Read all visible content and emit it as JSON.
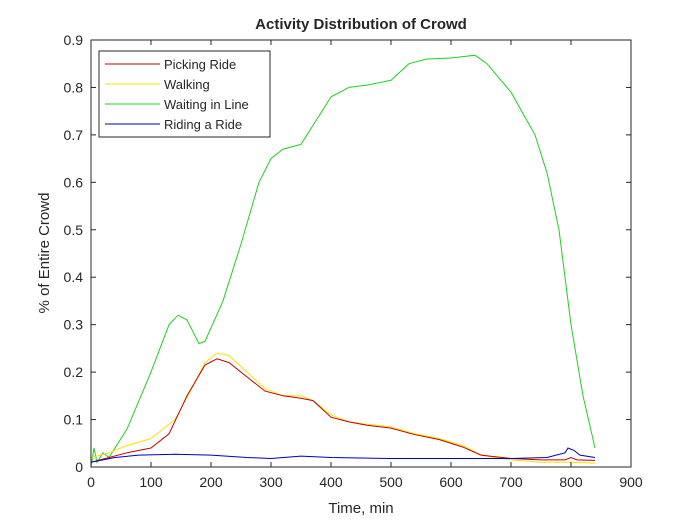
{
  "chart_data": {
    "type": "line",
    "title": "Activity Distribution of Crowd",
    "xlabel": "Time, min",
    "ylabel": "% of Entire Crowd",
    "xlim": [
      0,
      900
    ],
    "ylim": [
      0,
      0.9
    ],
    "xticks": [
      "0",
      "100",
      "200",
      "300",
      "400",
      "500",
      "600",
      "700",
      "800",
      "900"
    ],
    "yticks": [
      "0",
      "0.1",
      "0.2",
      "0.3",
      "0.4",
      "0.5",
      "0.6",
      "0.7",
      "0.8",
      "0.9"
    ],
    "grid": false,
    "legend_position": "top-left",
    "series": [
      {
        "name": "Picking Ride",
        "color": "#c00000",
        "x": [
          0,
          30,
          60,
          100,
          130,
          160,
          190,
          210,
          230,
          260,
          290,
          320,
          350,
          370,
          400,
          430,
          460,
          500,
          540,
          580,
          620,
          650,
          700,
          750,
          790,
          800,
          810,
          840
        ],
        "y": [
          0.01,
          0.02,
          0.03,
          0.04,
          0.07,
          0.15,
          0.215,
          0.228,
          0.22,
          0.19,
          0.16,
          0.15,
          0.145,
          0.14,
          0.105,
          0.095,
          0.088,
          0.082,
          0.068,
          0.058,
          0.042,
          0.025,
          0.018,
          0.015,
          0.015,
          0.02,
          0.015,
          0.014
        ]
      },
      {
        "name": "Walking",
        "color": "#ffe000",
        "x": [
          0,
          30,
          60,
          100,
          140,
          170,
          190,
          210,
          230,
          260,
          290,
          320,
          350,
          370,
          400,
          430,
          460,
          500,
          540,
          580,
          620,
          650,
          700,
          750,
          800,
          840
        ],
        "y": [
          0.02,
          0.03,
          0.045,
          0.06,
          0.1,
          0.17,
          0.22,
          0.24,
          0.235,
          0.2,
          0.165,
          0.15,
          0.15,
          0.14,
          0.11,
          0.095,
          0.09,
          0.085,
          0.07,
          0.06,
          0.045,
          0.025,
          0.015,
          0.01,
          0.01,
          0.008
        ]
      },
      {
        "name": "Waiting in Line",
        "color": "#20d020",
        "x": [
          0,
          5,
          10,
          20,
          30,
          40,
          60,
          100,
          130,
          145,
          160,
          180,
          190,
          220,
          250,
          280,
          300,
          320,
          350,
          370,
          400,
          430,
          460,
          500,
          530,
          560,
          600,
          620,
          640,
          660,
          700,
          740,
          760,
          780,
          800,
          820,
          840
        ],
        "y": [
          0.0,
          0.04,
          0.01,
          0.03,
          0.02,
          0.04,
          0.08,
          0.2,
          0.3,
          0.32,
          0.31,
          0.26,
          0.265,
          0.35,
          0.47,
          0.6,
          0.65,
          0.67,
          0.68,
          0.72,
          0.78,
          0.8,
          0.805,
          0.815,
          0.85,
          0.86,
          0.862,
          0.865,
          0.868,
          0.85,
          0.79,
          0.7,
          0.62,
          0.5,
          0.3,
          0.15,
          0.04
        ]
      },
      {
        "name": "Riding a Ride",
        "color": "#0000c0",
        "x": [
          0,
          20,
          40,
          80,
          140,
          200,
          260,
          300,
          350,
          400,
          500,
          600,
          700,
          760,
          790,
          795,
          805,
          815,
          840
        ],
        "y": [
          0.01,
          0.015,
          0.02,
          0.025,
          0.027,
          0.025,
          0.02,
          0.018,
          0.023,
          0.02,
          0.018,
          0.018,
          0.018,
          0.02,
          0.03,
          0.04,
          0.035,
          0.025,
          0.02
        ]
      }
    ]
  }
}
